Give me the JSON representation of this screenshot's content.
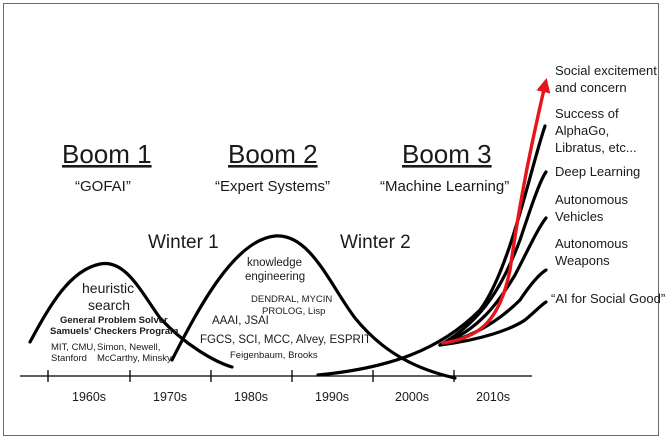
{
  "booms": [
    {
      "title": "Boom 1",
      "subtitle": "“GOFAI”"
    },
    {
      "title": "Boom 2",
      "subtitle": "“Expert Systems”"
    },
    {
      "title": "Boom 3",
      "subtitle": "“Machine Learning”"
    }
  ],
  "winters": [
    "Winter 1",
    "Winter 2"
  ],
  "boom1_notes": {
    "line1": "heuristic",
    "line2": "search",
    "gps": "General Problem Solver",
    "checkers": "Samuels' Checkers Program",
    "mit": "MIT, CMU,",
    "stanford": "Stanford",
    "simon": "Simon, Newell,",
    "mccarthy": "McCarthy, Minsky"
  },
  "boom2_notes": {
    "ke1": "knowledge",
    "ke2": "engineering",
    "dendral": "DENDRAL, MYCIN",
    "prolog": "PROLOG, Lisp",
    "aaai": "AAAI, JSAI",
    "fgcs": "FGCS, SCI, MCC, Alvey, ESPRIT",
    "people": "Feigenbaum, Brooks"
  },
  "decades": [
    "1960s",
    "1970s",
    "1980s",
    "1990s",
    "2000s",
    "2010s"
  ],
  "boom3_outcomes": [
    {
      "line1": "Social excitement",
      "line2": "and concern"
    },
    {
      "line1": "Success of",
      "line2": "AlphaGo,",
      "line3": "Libratus, etc..."
    },
    {
      "line1": "Deep Learning"
    },
    {
      "line1": "Autonomous",
      "line2": "Vehicles"
    },
    {
      "line1": "Autonomous",
      "line2": "Weapons"
    },
    {
      "line1": "“AI for Social Good”?"
    }
  ],
  "colors": {
    "accent": "#e8141b",
    "line": "#000000",
    "border": "#6b6b6b"
  }
}
